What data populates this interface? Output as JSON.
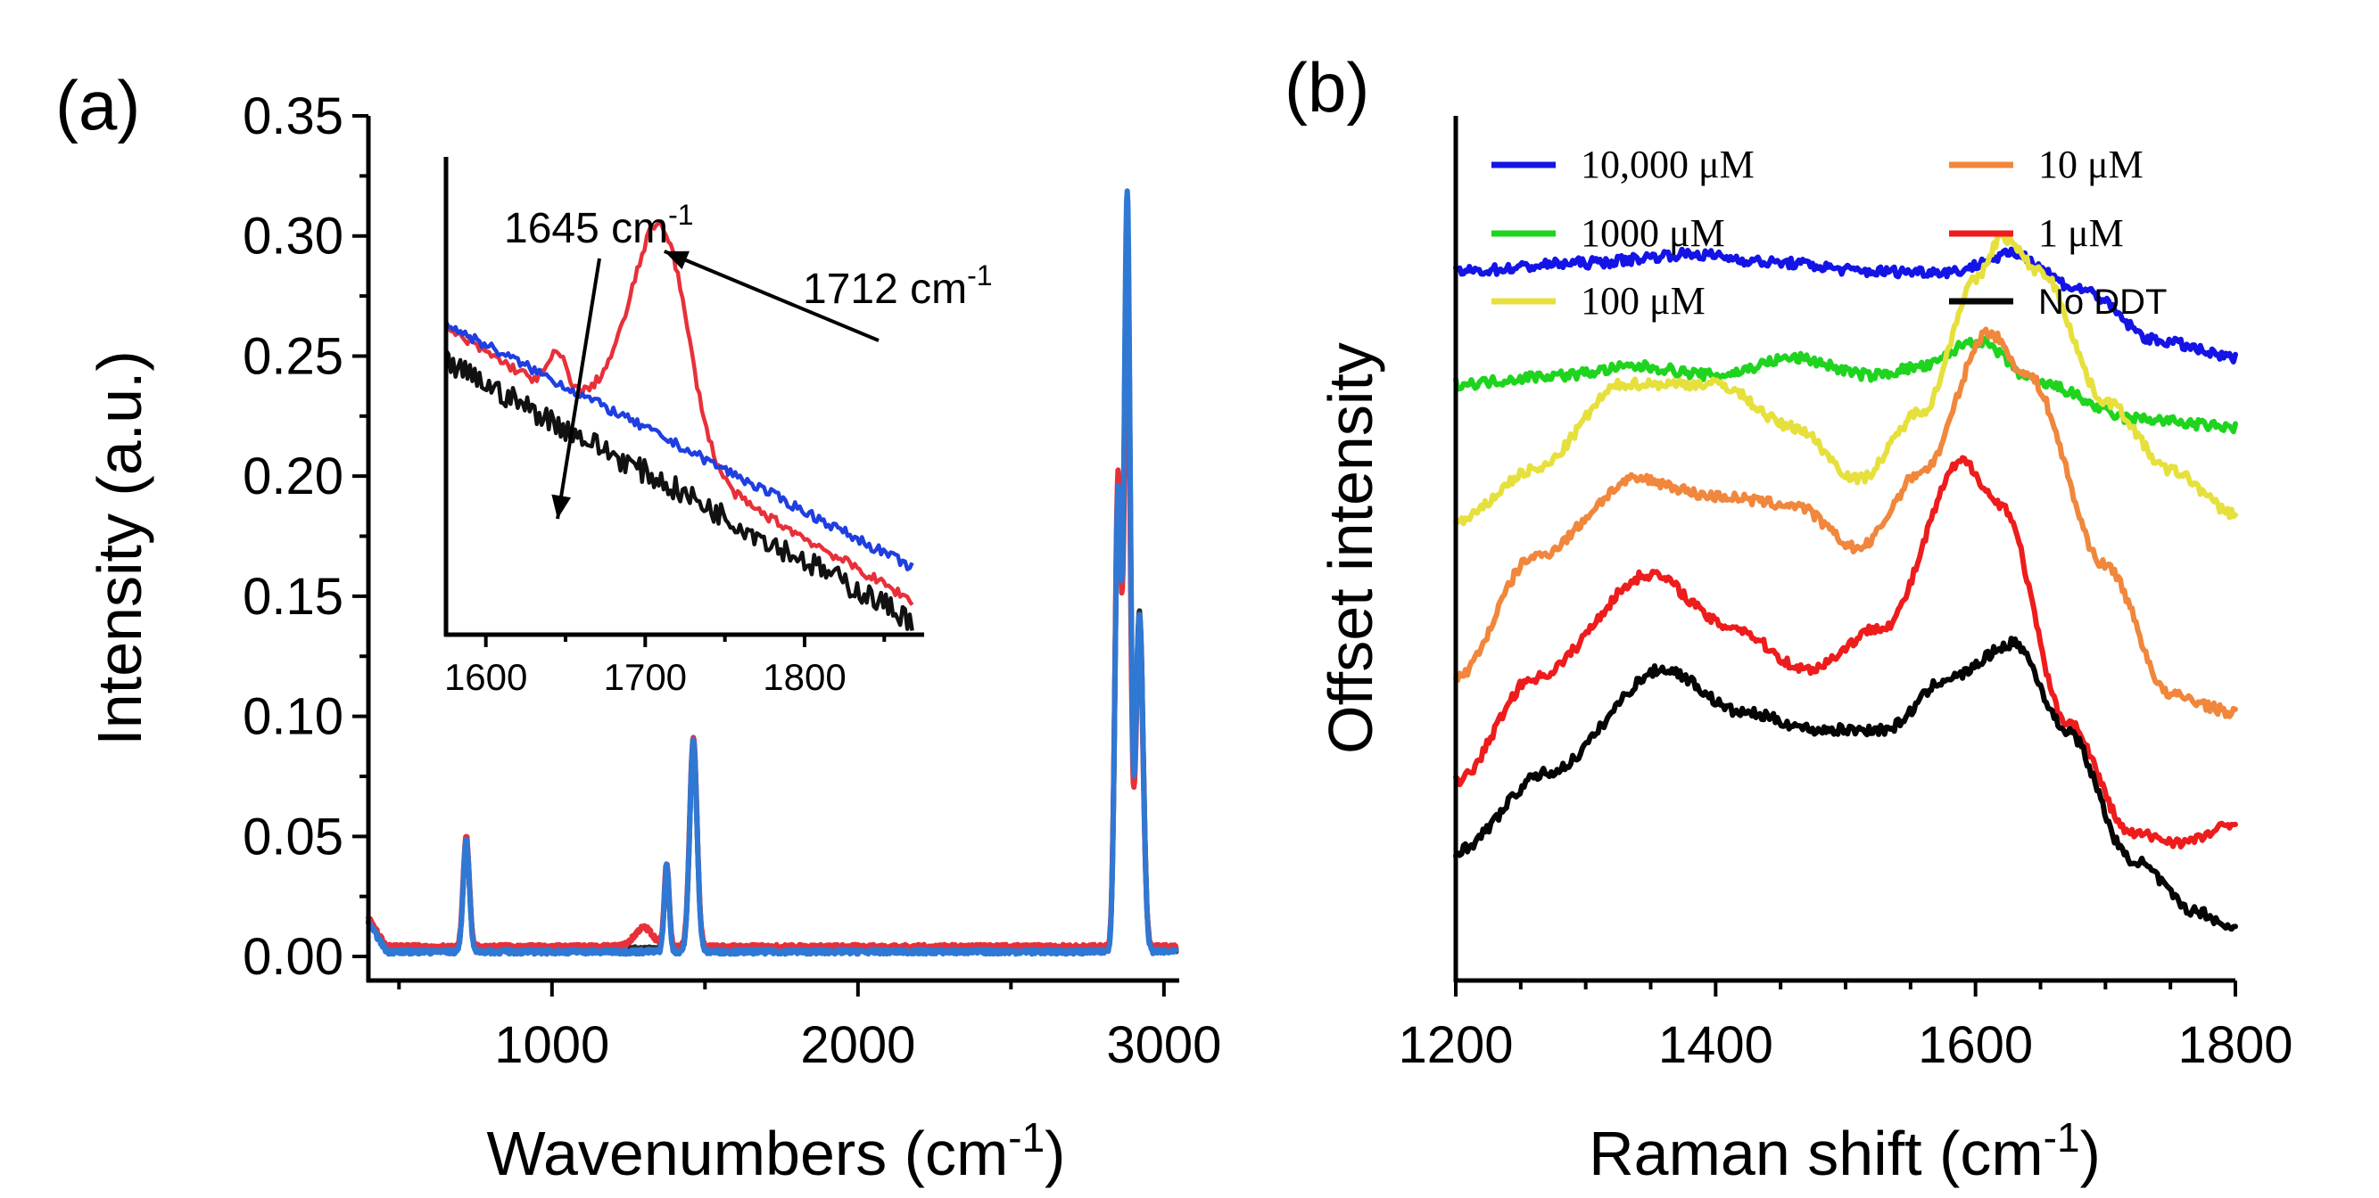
{
  "chart_data": [
    {
      "panel": "(a)",
      "type": "line",
      "xlabel": "Wavenumbers (cm-1)",
      "xlabel_main": "Wavenumbers (cm",
      "xlabel_sup": "-1",
      "xlabel_close": ")",
      "ylabel": "Intensity (a.u.)",
      "xlim": [
        400,
        3050
      ],
      "ylim": [
        -0.01,
        0.35
      ],
      "xticks": [
        1000,
        2000,
        3000
      ],
      "yticks": [
        0.0,
        0.05,
        0.1,
        0.15,
        0.2,
        0.25,
        0.3,
        0.35
      ],
      "ytick_labels": [
        "0.00",
        "0.05",
        "0.10",
        "0.15",
        "0.20",
        "0.25",
        "0.30",
        "0.35"
      ],
      "series": [
        {
          "name": "black",
          "color": "#2b2b2b",
          "baseline": 0.003,
          "peaks": [
            [
              720,
              0.045,
              10
            ],
            [
              1375,
              0.034,
              8
            ],
            [
              1462,
              0.086,
              12
            ],
            [
              2850,
              0.19,
              10
            ],
            [
              2880,
              0.3,
              10
            ],
            [
              2920,
              0.14,
              12
            ]
          ]
        },
        {
          "name": "red",
          "color": "#e8303a",
          "baseline": 0.004,
          "peaks": [
            [
              720,
              0.046,
              10
            ],
            [
              1300,
              0.008,
              30
            ],
            [
              1375,
              0.035,
              8
            ],
            [
              1462,
              0.087,
              12
            ],
            [
              2850,
              0.195,
              10
            ],
            [
              2880,
              0.27,
              10
            ],
            [
              2920,
              0.13,
              12
            ]
          ]
        },
        {
          "name": "blue",
          "color": "#2f78d4",
          "baseline": 0.002,
          "peaks": [
            [
              720,
              0.047,
              10
            ],
            [
              1375,
              0.036,
              8
            ],
            [
              1462,
              0.088,
              12
            ],
            [
              2850,
              0.19,
              10
            ],
            [
              2880,
              0.315,
              10
            ],
            [
              2920,
              0.14,
              12
            ]
          ]
        }
      ],
      "inset": {
        "xlim": [
          1575,
          1875
        ],
        "xticks": [
          1600,
          1700,
          1800
        ],
        "series": [
          {
            "name": "black",
            "color": "#111111",
            "start": 0.62,
            "end": 0.08,
            "peaks": []
          },
          {
            "name": "red",
            "color": "#e8303a",
            "start": 0.64,
            "end": 0.07,
            "peaks": [
              [
                1645,
                0.08,
                6
              ],
              [
                1712,
                0.42,
                16
              ],
              [
                1690,
                0.12,
                18
              ]
            ]
          },
          {
            "name": "blue",
            "color": "#1f3fe0",
            "start": 0.65,
            "end": 0.14,
            "peaks": []
          }
        ],
        "annotations": [
          {
            "text": "1645 cm",
            "sup": "-1",
            "x": 1645
          },
          {
            "text": "1712 cm",
            "sup": "-1",
            "x": 1712
          }
        ]
      }
    },
    {
      "panel": "(b)",
      "type": "line",
      "xlabel": "Raman shift (cm-1)",
      "xlabel_main": "Raman shift (cm",
      "xlabel_sup": "-1",
      "xlabel_close": ")",
      "ylabel": "Offset intensity",
      "xlim": [
        1200,
        1800
      ],
      "xticks": [
        1200,
        1400,
        1600,
        1800
      ],
      "ylim": [
        0,
        10
      ],
      "series": [
        {
          "name": "10,000 μM",
          "color": "#1414e6",
          "points": [
            [
              1200,
              8.2
            ],
            [
              1300,
              8.3
            ],
            [
              1380,
              8.4
            ],
            [
              1450,
              8.3
            ],
            [
              1520,
              8.2
            ],
            [
              1580,
              8.2
            ],
            [
              1630,
              8.4
            ],
            [
              1680,
              8.0
            ],
            [
              1740,
              7.4
            ],
            [
              1800,
              7.2
            ]
          ]
        },
        {
          "name": "1000 μM",
          "color": "#1ed41e",
          "points": [
            [
              1200,
              6.9
            ],
            [
              1280,
              7.0
            ],
            [
              1340,
              7.1
            ],
            [
              1400,
              7.0
            ],
            [
              1460,
              7.2
            ],
            [
              1520,
              7.0
            ],
            [
              1560,
              7.1
            ],
            [
              1600,
              7.4
            ],
            [
              1650,
              6.9
            ],
            [
              1720,
              6.5
            ],
            [
              1800,
              6.4
            ]
          ]
        },
        {
          "name": "100 μM",
          "color": "#e6e03c",
          "points": [
            [
              1200,
              5.3
            ],
            [
              1260,
              5.9
            ],
            [
              1330,
              6.9
            ],
            [
              1400,
              6.9
            ],
            [
              1460,
              6.4
            ],
            [
              1510,
              5.8
            ],
            [
              1560,
              6.6
            ],
            [
              1600,
              8.1
            ],
            [
              1620,
              8.6
            ],
            [
              1650,
              8.2
            ],
            [
              1700,
              6.7
            ],
            [
              1750,
              5.9
            ],
            [
              1800,
              5.4
            ]
          ]
        },
        {
          "name": "10 μM",
          "color": "#f0873c",
          "points": [
            [
              1200,
              3.5
            ],
            [
              1260,
              4.9
            ],
            [
              1340,
              5.8
            ],
            [
              1400,
              5.6
            ],
            [
              1460,
              5.5
            ],
            [
              1510,
              5.0
            ],
            [
              1560,
              5.9
            ],
            [
              1610,
              7.5
            ],
            [
              1640,
              7.0
            ],
            [
              1700,
              4.8
            ],
            [
              1750,
              3.3
            ],
            [
              1800,
              3.1
            ]
          ]
        },
        {
          "name": "1 μM",
          "color": "#ee1c1c",
          "points": [
            [
              1200,
              2.3
            ],
            [
              1260,
              3.5
            ],
            [
              1350,
              4.7
            ],
            [
              1410,
              4.1
            ],
            [
              1470,
              3.6
            ],
            [
              1530,
              4.1
            ],
            [
              1590,
              6.0
            ],
            [
              1620,
              5.5
            ],
            [
              1670,
              3.0
            ],
            [
              1720,
              1.7
            ],
            [
              1760,
              1.6
            ],
            [
              1800,
              1.8
            ]
          ]
        },
        {
          "name": "No DDT",
          "color": "#050505",
          "points": [
            [
              1200,
              1.5
            ],
            [
              1270,
              2.4
            ],
            [
              1360,
              3.6
            ],
            [
              1420,
              3.1
            ],
            [
              1480,
              2.9
            ],
            [
              1530,
              2.9
            ],
            [
              1580,
              3.5
            ],
            [
              1630,
              3.9
            ],
            [
              1670,
              2.9
            ],
            [
              1720,
              1.4
            ],
            [
              1770,
              0.8
            ],
            [
              1800,
              0.6
            ]
          ]
        }
      ],
      "legend": {
        "placement": "top",
        "entries": [
          {
            "label": "10,000 μM",
            "color": "#1414e6",
            "font": "serif"
          },
          {
            "label": "10 μM",
            "color": "#f0873c",
            "font": "serif"
          },
          {
            "label": "1000 μM",
            "color": "#1ed41e",
            "font": "serif"
          },
          {
            "label": "1 μM",
            "color": "#ee1c1c",
            "font": "serif"
          },
          {
            "label": "100 μM",
            "color": "#e6e03c",
            "font": "serif"
          },
          {
            "label": "No DDT",
            "color": "#050505",
            "font": "sans"
          }
        ]
      }
    }
  ]
}
